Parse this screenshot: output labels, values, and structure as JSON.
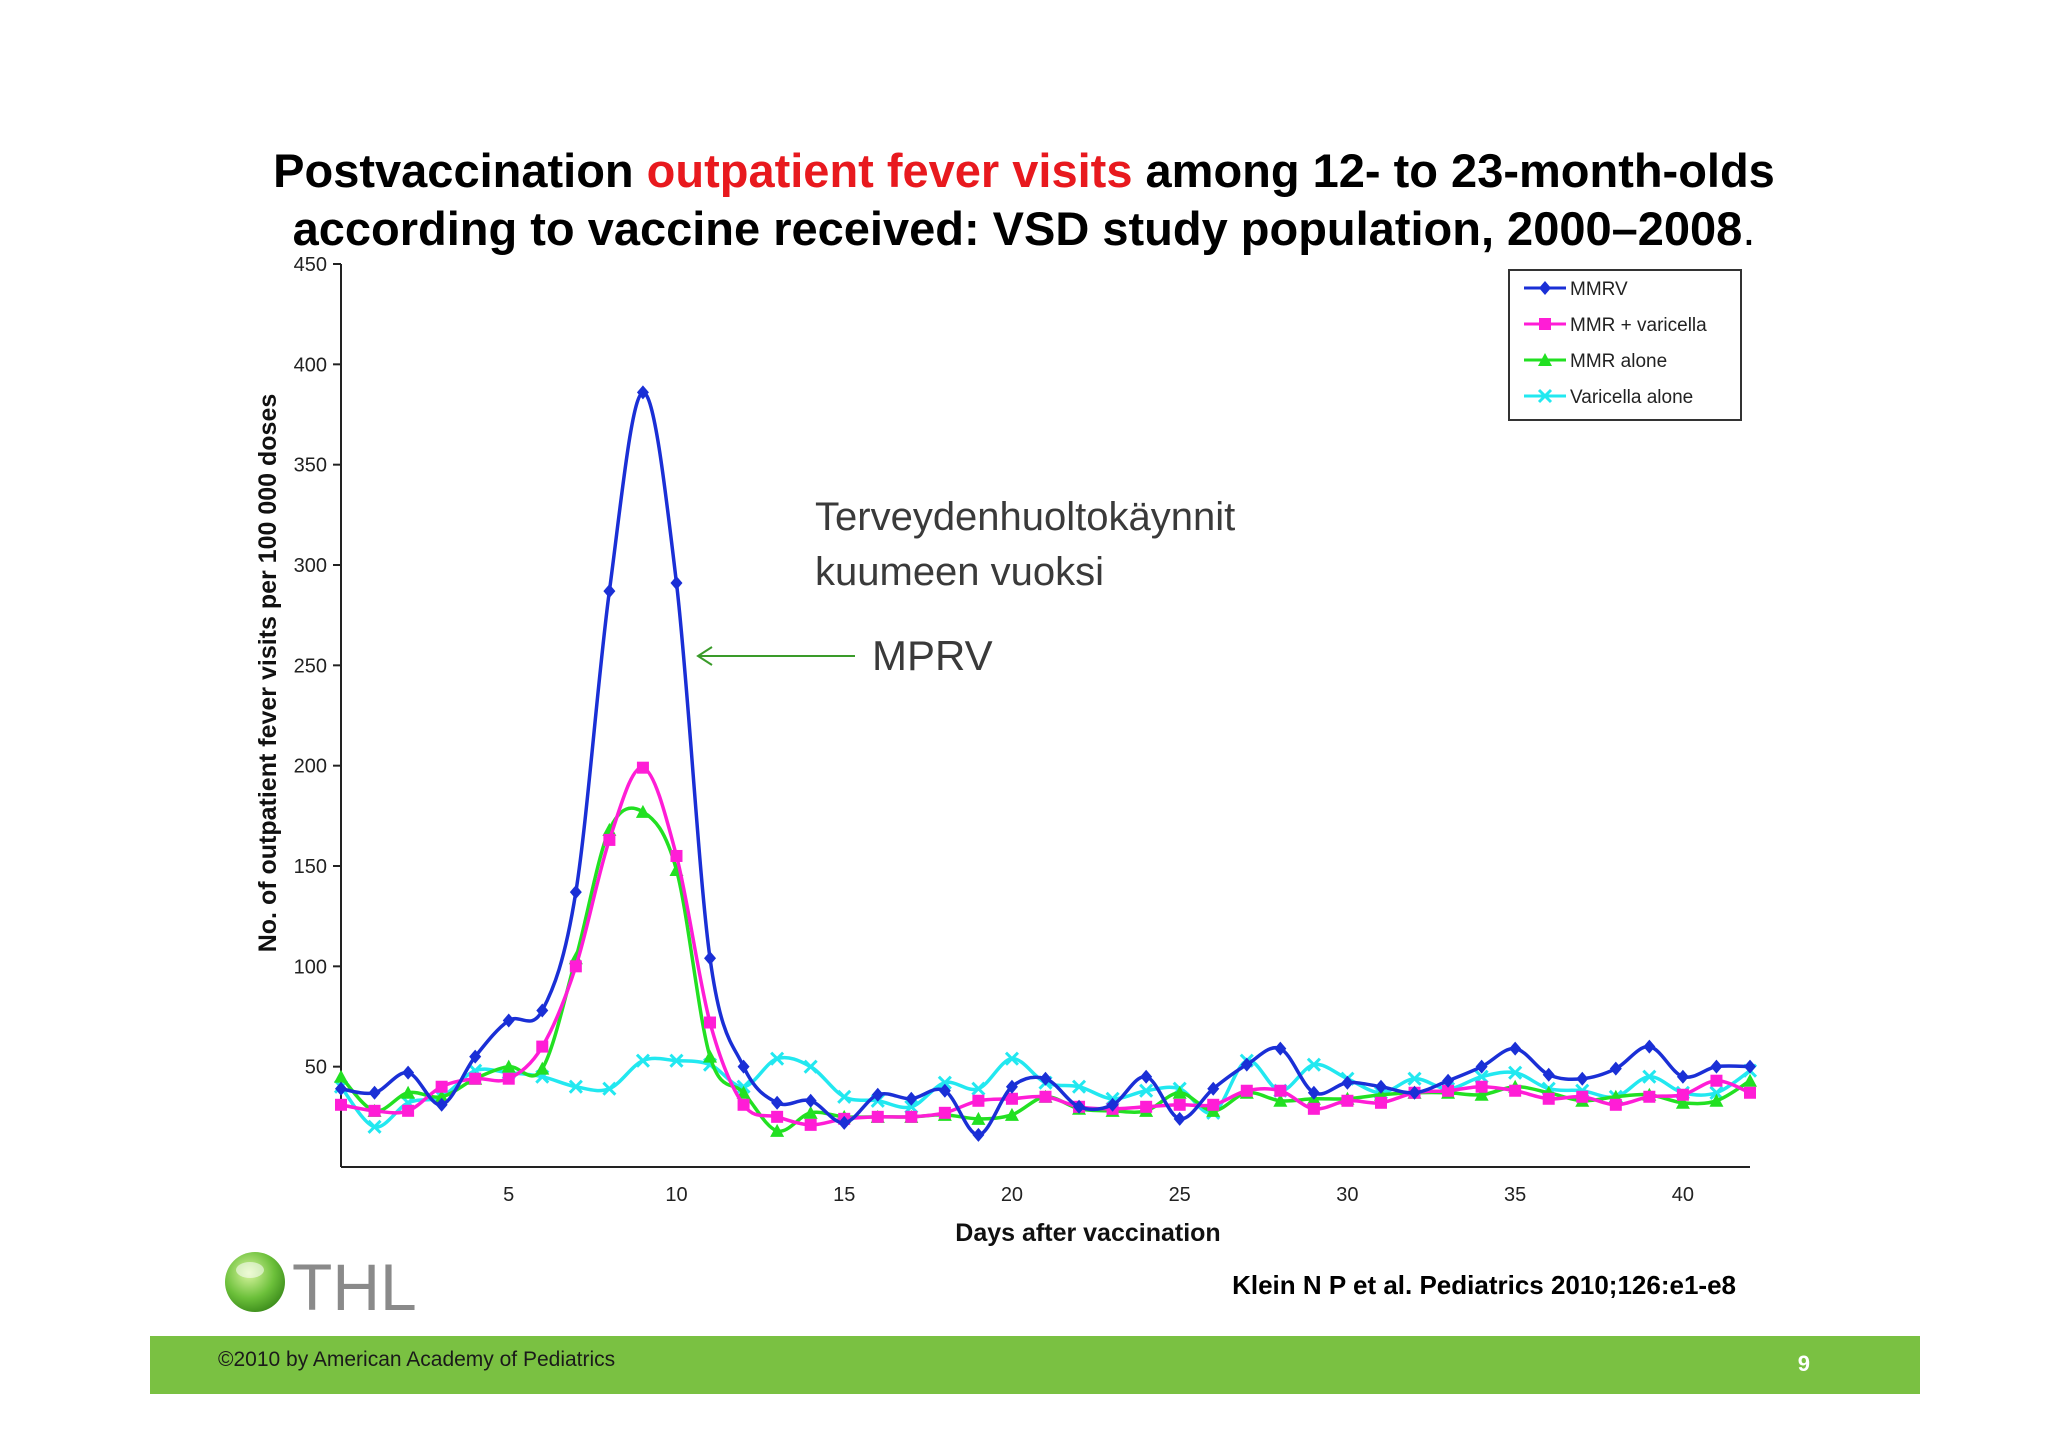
{
  "slide": {
    "title_part1": "Postvaccination ",
    "title_highlight": "outpatient fever visits",
    "title_part2": " among 12- to 23-month-olds",
    "title_line2": "according to vaccine received: VSD study population, 2000–2008",
    "title_period": ".",
    "citation": "Klein N P et al. Pediatrics 2010;126:e1-e8",
    "copyright": "©2010 by American Academy of Pediatrics",
    "page_number": "9",
    "logo_text": "THL",
    "annotation_finnish_line1": "Terveydenhuoltokäynnit",
    "annotation_finnish_line2": "kuumeen vuoksi",
    "annotation_mprv": "MPRV",
    "colors": {
      "title_highlight": "#e8191e",
      "footer_bar": "#7ac142",
      "arrow": "#3a9b2a"
    }
  },
  "chart_data": {
    "type": "line",
    "xlabel": "Days after vaccination",
    "ylabel": "No. of outpatient fever visits per 100 000 doses",
    "xlim": [
      0,
      42
    ],
    "ylim": [
      0,
      450
    ],
    "xticks": [
      5,
      10,
      15,
      20,
      25,
      30,
      35,
      40
    ],
    "yticks": [
      50,
      100,
      150,
      200,
      250,
      300,
      350,
      400,
      450
    ],
    "legend_position": "top-right",
    "x": [
      0,
      1,
      2,
      3,
      4,
      5,
      6,
      7,
      8,
      9,
      10,
      11,
      12,
      13,
      14,
      15,
      16,
      17,
      18,
      19,
      20,
      21,
      22,
      23,
      24,
      25,
      26,
      27,
      28,
      29,
      30,
      31,
      32,
      33,
      34,
      35,
      36,
      37,
      38,
      39,
      40,
      41,
      42
    ],
    "series": [
      {
        "name": "MMRV",
        "color": "#1a2fd6",
        "marker": "diamond",
        "values": [
          39,
          37,
          47,
          31,
          55,
          73,
          78,
          137,
          287,
          386,
          291,
          104,
          50,
          32,
          33,
          22,
          36,
          34,
          38,
          16,
          40,
          44,
          30,
          31,
          45,
          24,
          39,
          51,
          59,
          37,
          42,
          40,
          37,
          43,
          50,
          59,
          46,
          44,
          49,
          60,
          45,
          50,
          50
        ]
      },
      {
        "name": "MMR + varicella",
        "color": "#ff1dd6",
        "marker": "square",
        "values": [
          31,
          28,
          28,
          40,
          44,
          44,
          60,
          100,
          163,
          199,
          155,
          72,
          31,
          25,
          21,
          24,
          25,
          25,
          27,
          33,
          34,
          35,
          30,
          29,
          30,
          31,
          31,
          38,
          38,
          29,
          33,
          32,
          37,
          38,
          40,
          38,
          34,
          35,
          31,
          35,
          36,
          43,
          37
        ]
      },
      {
        "name": "MMR alone",
        "color": "#22e022",
        "marker": "triangle",
        "values": [
          45,
          28,
          37,
          35,
          44,
          50,
          49,
          104,
          168,
          177,
          148,
          55,
          37,
          18,
          27,
          25,
          25,
          25,
          26,
          24,
          26,
          35,
          29,
          28,
          28,
          37,
          28,
          37,
          33,
          34,
          34,
          36,
          37,
          37,
          36,
          40,
          37,
          33,
          35,
          36,
          32,
          33,
          43
        ]
      },
      {
        "name": "Varicella alone",
        "color": "#22e8f0",
        "marker": "x",
        "values": [
          40,
          20,
          32,
          35,
          48,
          47,
          45,
          40,
          39,
          53,
          53,
          51,
          40,
          54,
          50,
          35,
          33,
          30,
          42,
          39,
          54,
          42,
          40,
          34,
          38,
          39,
          27,
          53,
          38,
          51,
          44,
          37,
          44,
          39,
          45,
          47,
          39,
          38,
          35,
          45,
          37,
          37,
          48
        ]
      }
    ]
  }
}
